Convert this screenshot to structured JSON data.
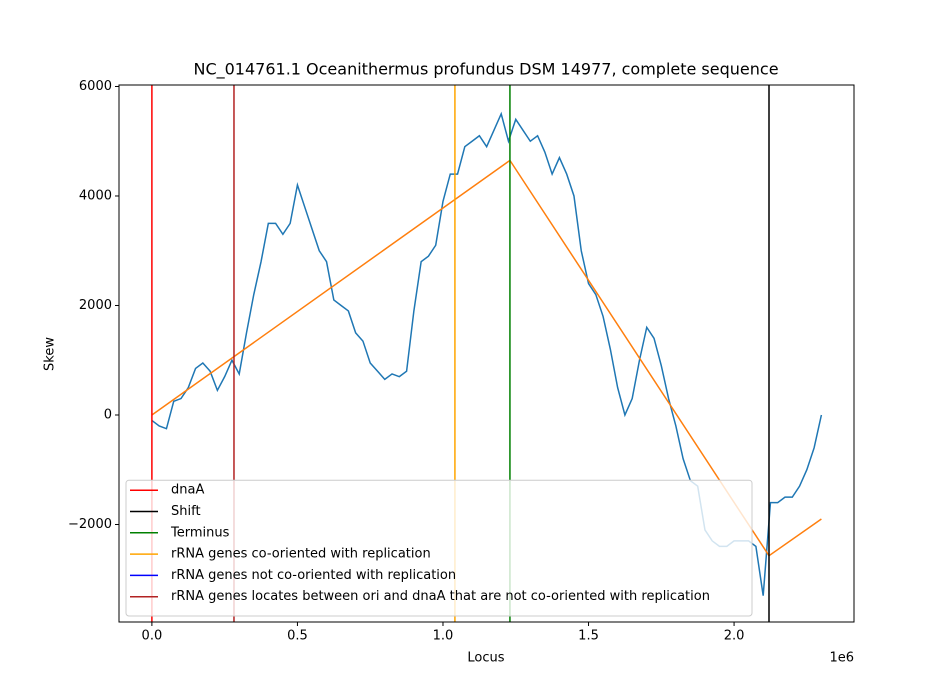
{
  "chart_data": {
    "type": "line",
    "title": "NC_014761.1 Oceanithermus profundus DSM 14977, complete sequence",
    "xlabel": "Locus",
    "ylabel": "Skew",
    "x_offset_label": "1e6",
    "xlim": [
      -113000,
      2412000
    ],
    "ylim": [
      -3781,
      6027
    ],
    "xticks": [
      {
        "value": 0,
        "label": "0.0"
      },
      {
        "value": 500000,
        "label": "0.5"
      },
      {
        "value": 1000000,
        "label": "1.0"
      },
      {
        "value": 1500000,
        "label": "1.5"
      },
      {
        "value": 2000000,
        "label": "2.0"
      }
    ],
    "yticks": [
      {
        "value": -2000,
        "label": "−2000"
      },
      0,
      2000,
      4000,
      6000
    ],
    "legend_loc": "lower left",
    "series": [
      {
        "color": "#1f77b4",
        "x": [
          0,
          25000,
          50000,
          75000,
          100000,
          125000,
          150000,
          175000,
          200000,
          225000,
          250000,
          275000,
          300000,
          325000,
          350000,
          375000,
          400000,
          425000,
          450000,
          475000,
          500000,
          525000,
          550000,
          575000,
          600000,
          625000,
          650000,
          675000,
          700000,
          725000,
          750000,
          775000,
          800000,
          825000,
          850000,
          875000,
          900000,
          925000,
          950000,
          975000,
          1000000,
          1025000,
          1050000,
          1075000,
          1100000,
          1125000,
          1150000,
          1175000,
          1200000,
          1225000,
          1250000,
          1275000,
          1300000,
          1325000,
          1350000,
          1375000,
          1400000,
          1425000,
          1450000,
          1475000,
          1500000,
          1525000,
          1550000,
          1575000,
          1600000,
          1625000,
          1650000,
          1675000,
          1700000,
          1725000,
          1750000,
          1775000,
          1800000,
          1825000,
          1850000,
          1875000,
          1900000,
          1925000,
          1950000,
          1975000,
          2000000,
          2025000,
          2050000,
          2075000,
          2100000,
          2125000,
          2150000,
          2175000,
          2200000,
          2225000,
          2250000,
          2275000,
          2300000
        ],
        "values": [
          -100,
          -200,
          -250,
          250,
          300,
          500,
          850,
          950,
          800,
          450,
          700,
          1000,
          750,
          1500,
          2200,
          2800,
          3500,
          3500,
          3300,
          3500,
          4200,
          3800,
          3400,
          3000,
          2800,
          2100,
          2000,
          1900,
          1500,
          1350,
          950,
          800,
          650,
          750,
          700,
          800,
          1900,
          2800,
          2900,
          3100,
          3900,
          4400,
          4400,
          4900,
          5000,
          5100,
          4900,
          5200,
          5500,
          5000,
          5400,
          5200,
          5000,
          5100,
          4800,
          4400,
          4700,
          4400,
          4000,
          3000,
          2400,
          2200,
          1800,
          1200,
          500,
          0,
          300,
          1000,
          1600,
          1400,
          900,
          300,
          -200,
          -800,
          -1200,
          -1300,
          -2100,
          -2300,
          -2400,
          -2400,
          -2300,
          -2300,
          -2300,
          -2400,
          -3300,
          -1600,
          -1600,
          -1500,
          -1500,
          -1300,
          -1000,
          -600,
          0
        ]
      },
      {
        "color": "#ff7f0e",
        "x": [
          0,
          1230000,
          2120000,
          2300000
        ],
        "values": [
          0,
          4650,
          -2570,
          -1900
        ]
      }
    ],
    "vlines": [
      {
        "name": "dnaA",
        "color": "#ff0000",
        "x": [
          0
        ]
      },
      {
        "name": "Shift",
        "color": "#000000",
        "x": [
          2120000
        ]
      },
      {
        "name": "Terminus",
        "color": "#008000",
        "x": [
          1230000
        ]
      },
      {
        "name": "rRNA genes co-oriented with replication",
        "color": "#ffa500",
        "x": [
          1041000
        ]
      },
      {
        "name": "rRNA genes not co-oriented with replication",
        "color": "#0000ff",
        "x": []
      },
      {
        "name": "rRNA genes locates between ori and dnaA that are not co-oriented with replication",
        "color": "#b22222",
        "x": [
          282000
        ]
      }
    ]
  }
}
